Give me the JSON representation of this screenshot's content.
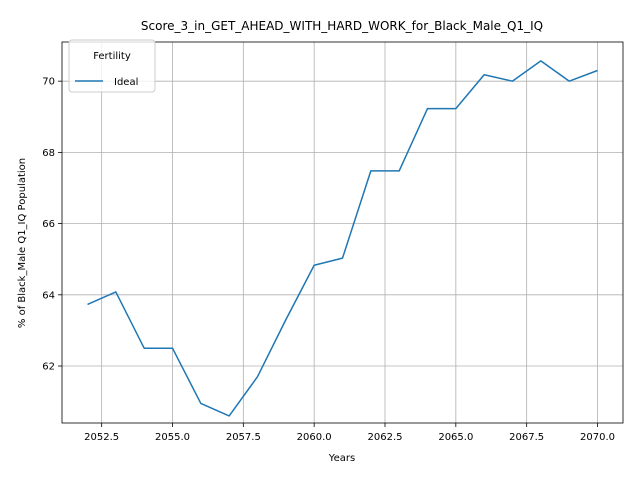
{
  "chart_data": {
    "type": "line",
    "title": "Score_3_in_GET_AHEAD_WITH_HARD_WORK_for_Black_Male_Q1_IQ",
    "xlabel": "Years",
    "ylabel": "% of Black_Male Q1_IQ Population",
    "x": [
      2052,
      2053,
      2054,
      2055,
      2056,
      2057,
      2058,
      2059,
      2060,
      2061,
      2062,
      2063,
      2064,
      2065,
      2066,
      2067,
      2068,
      2069,
      2070
    ],
    "series": [
      {
        "name": "Ideal",
        "color": "#1f77b4",
        "values": [
          63.73,
          64.08,
          62.5,
          62.5,
          60.95,
          60.6,
          61.7,
          63.3,
          64.83,
          65.03,
          67.48,
          67.48,
          69.23,
          69.23,
          70.18,
          70.0,
          70.57,
          70.0,
          70.3
        ]
      }
    ],
    "xlim": [
      2051.1,
      2070.9
    ],
    "ylim": [
      60.4,
      71.1
    ],
    "xticks": [
      2052.5,
      2055.0,
      2057.5,
      2060.0,
      2062.5,
      2065.0,
      2067.5,
      2070.0
    ],
    "xtick_labels": [
      "2052.5",
      "2055.0",
      "2057.5",
      "2060.0",
      "2062.5",
      "2065.0",
      "2067.5",
      "2070.0"
    ],
    "yticks": [
      62,
      64,
      66,
      68,
      70
    ],
    "ytick_labels": [
      "62",
      "64",
      "66",
      "68",
      "70"
    ],
    "grid": true,
    "legend": {
      "title": "Fertility",
      "placement": "top-left"
    }
  }
}
